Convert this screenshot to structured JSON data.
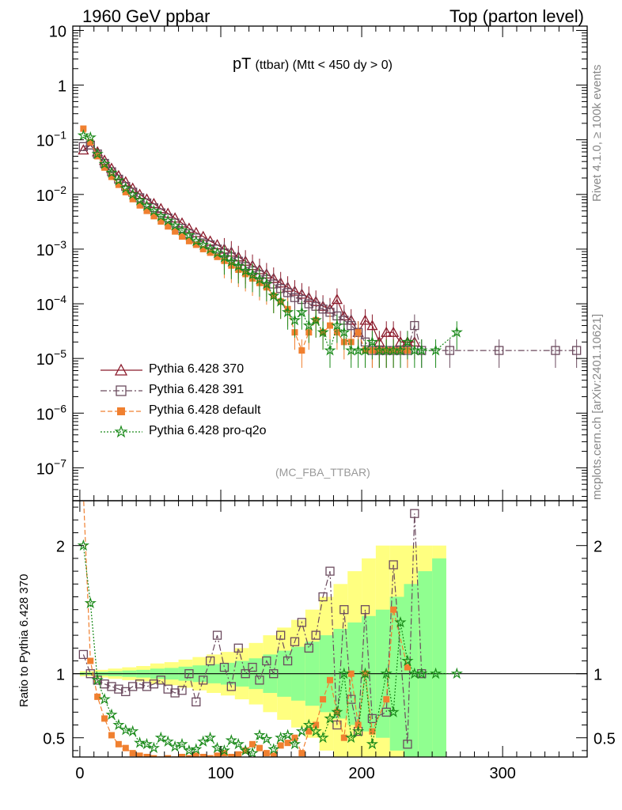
{
  "header": {
    "left": "1960 GeV ppbar",
    "right": "Top (parton level)"
  },
  "side_labels": {
    "rivet": "Rivet 4.1.0, ≥ 100k events",
    "mcplots": "mcplots.cern.ch [arXiv:2401.10621]"
  },
  "plot_title": {
    "main": "pT",
    "sub": "(ttbar) (Mtt < 450 dy > 0)"
  },
  "watermark": "(MC_FBA_TTBAR)",
  "colors": {
    "p370": "#8b1a2b",
    "p391": "#6b4a5e",
    "pdefault": "#f08030",
    "pq2o": "#1a8a1a",
    "band_yellow": "#ffff80",
    "band_green": "#90ff90"
  },
  "chart_data": {
    "type": "line",
    "xlabel": "",
    "xlim": [
      -5,
      360
    ],
    "x_ticks": [
      "0",
      "100",
      "200",
      "300"
    ],
    "main_panel": {
      "yscale": "log",
      "ylim": [
        2.5e-08,
        12
      ],
      "y_ticks": [
        "10^-7",
        "10^-6",
        "10^-5",
        "10^-4",
        "10^-3",
        "10^-2",
        "10^-1",
        "1",
        "10"
      ],
      "ylabel": "",
      "series": [
        {
          "name": "Pythia 6.428 370",
          "marker": "triangle",
          "style": "solid",
          "color": "#8b1a2b",
          "x": [
            2.5,
            7.5,
            12.5,
            17.5,
            22.5,
            27.5,
            32.5,
            37.5,
            42.5,
            47.5,
            52.5,
            57.5,
            62.5,
            67.5,
            72.5,
            77.5,
            82.5,
            87.5,
            92.5,
            97.5,
            102.5,
            107.5,
            112.5,
            117.5,
            122.5,
            127.5,
            132.5,
            137.5,
            142.5,
            147.5,
            152.5,
            157.5,
            162.5,
            167.5,
            172.5,
            177.5,
            182.5,
            187.5,
            192.5,
            197.5,
            202.5,
            207.5,
            212.5,
            217.5,
            222.5,
            227.5,
            232.5,
            237.5
          ],
          "y": [
            0.065,
            0.08,
            0.06,
            0.042,
            0.03,
            0.022,
            0.017,
            0.013,
            0.01,
            0.0082,
            0.0068,
            0.0055,
            0.0045,
            0.0037,
            0.003,
            0.0024,
            0.002,
            0.0017,
            0.0014,
            0.0012,
            0.001,
            0.00088,
            0.00072,
            0.0006,
            0.0005,
            0.00042,
            0.00035,
            0.00029,
            0.00024,
            0.0002,
            0.00017,
            0.00015,
            0.00013,
            0.00011,
            9e-05,
            8e-05,
            0.00012,
            6e-05,
            5e-05,
            3e-05,
            5e-05,
            4e-05,
            2e-05,
            3e-05,
            3e-05,
            2e-05,
            2e-05,
            2e-05
          ]
        },
        {
          "name": "Pythia 6.428 391",
          "marker": "open-square",
          "style": "dashdot",
          "color": "#6b4a5e",
          "x": [
            2.5,
            7.5,
            12.5,
            17.5,
            22.5,
            27.5,
            32.5,
            37.5,
            42.5,
            47.5,
            52.5,
            57.5,
            62.5,
            67.5,
            72.5,
            77.5,
            82.5,
            87.5,
            92.5,
            97.5,
            102.5,
            107.5,
            112.5,
            117.5,
            122.5,
            127.5,
            132.5,
            137.5,
            142.5,
            147.5,
            152.5,
            157.5,
            162.5,
            167.5,
            172.5,
            177.5,
            182.5,
            187.5,
            192.5,
            197.5,
            202.5,
            207.5,
            212.5,
            217.5,
            222.5,
            227.5,
            232.5,
            237.5,
            242.5,
            262.5,
            297.5,
            337.5,
            352.5
          ],
          "y": [
            0.075,
            0.08,
            0.055,
            0.037,
            0.026,
            0.019,
            0.014,
            0.011,
            0.0087,
            0.007,
            0.0057,
            0.0046,
            0.0037,
            0.003,
            0.0024,
            0.0019,
            0.0016,
            0.0013,
            0.0012,
            0.001,
            0.00085,
            0.00072,
            0.0006,
            0.00048,
            0.0004,
            0.00034,
            0.00028,
            0.00023,
            0.00019,
            0.00016,
            0.00013,
            0.00012,
            0.0001,
            9e-05,
            8e-05,
            7e-05,
            6e-05,
            5e-05,
            4e-05,
            3e-05,
            2e-05,
            1.4e-05,
            1.4e-05,
            1.4e-05,
            1.4e-05,
            1.4e-05,
            1.4e-05,
            4e-05,
            1.4e-05,
            1.4e-05,
            1.4e-05,
            1.4e-05,
            1.4e-05
          ]
        },
        {
          "name": "Pythia 6.428 default",
          "marker": "filled-square",
          "style": "dashed",
          "color": "#f08030",
          "x": [
            2.5,
            7.5,
            12.5,
            17.5,
            22.5,
            27.5,
            32.5,
            37.5,
            42.5,
            47.5,
            52.5,
            57.5,
            62.5,
            67.5,
            72.5,
            77.5,
            82.5,
            87.5,
            92.5,
            97.5,
            102.5,
            107.5,
            112.5,
            117.5,
            122.5,
            127.5,
            132.5,
            137.5,
            142.5,
            147.5,
            152.5,
            157.5,
            162.5,
            167.5,
            172.5,
            177.5,
            182.5,
            187.5,
            192.5,
            197.5,
            202.5,
            207.5,
            212.5,
            217.5,
            222.5,
            227.5,
            232.5
          ],
          "y": [
            0.16,
            0.09,
            0.05,
            0.031,
            0.021,
            0.015,
            0.011,
            0.0082,
            0.0063,
            0.005,
            0.004,
            0.0032,
            0.0026,
            0.0021,
            0.0017,
            0.0014,
            0.0012,
            0.001,
            0.00086,
            0.00072,
            0.00061,
            0.0005,
            0.00042,
            0.00035,
            0.00029,
            0.00024,
            0.0002,
            0.00014,
            0.00011,
            8e-05,
            3e-05,
            1.4e-05,
            3e-05,
            5e-05,
            3e-05,
            4e-05,
            3e-05,
            2e-05,
            2e-05,
            3e-05,
            1.4e-05,
            1.4e-05,
            1.4e-05,
            1.4e-05,
            1.4e-05,
            1.4e-05,
            1.4e-05
          ]
        },
        {
          "name": "Pythia 6.428 pro-q2o",
          "marker": "star",
          "style": "dotted",
          "color": "#1a8a1a",
          "x": [
            2.5,
            7.5,
            12.5,
            17.5,
            22.5,
            27.5,
            32.5,
            37.5,
            42.5,
            47.5,
            52.5,
            57.5,
            62.5,
            67.5,
            72.5,
            77.5,
            82.5,
            87.5,
            92.5,
            97.5,
            102.5,
            107.5,
            112.5,
            117.5,
            122.5,
            127.5,
            132.5,
            137.5,
            142.5,
            147.5,
            152.5,
            157.5,
            162.5,
            167.5,
            172.5,
            177.5,
            182.5,
            187.5,
            192.5,
            197.5,
            202.5,
            207.5,
            212.5,
            217.5,
            222.5,
            227.5,
            232.5,
            237.5,
            242.5,
            252.5,
            267.5
          ],
          "y": [
            0.12,
            0.11,
            0.055,
            0.036,
            0.025,
            0.018,
            0.013,
            0.01,
            0.0078,
            0.0062,
            0.005,
            0.004,
            0.0033,
            0.0027,
            0.0022,
            0.0018,
            0.0014,
            0.0012,
            0.001,
            0.00085,
            0.00071,
            0.00059,
            0.00049,
            0.0004,
            0.00034,
            0.00028,
            0.00023,
            0.00014,
            0.00011,
            7e-05,
            5e-05,
            7e-05,
            4e-05,
            5e-05,
            3e-05,
            1.4e-05,
            4e-05,
            3e-05,
            1.4e-05,
            1.4e-05,
            1.4e-05,
            2e-05,
            1.4e-05,
            1.4e-05,
            1.4e-05,
            1.4e-05,
            2e-05,
            1.4e-05,
            1.4e-05,
            1.4e-05,
            3e-05
          ]
        }
      ]
    },
    "ratio_panel": {
      "ylabel": "Ratio to Pythia 6.428 370",
      "ylim": [
        0.35,
        2.35
      ],
      "y_ticks": [
        "0.5",
        "1",
        "2"
      ],
      "bands": {
        "x": [
          0,
          10,
          20,
          30,
          40,
          50,
          60,
          70,
          80,
          90,
          100,
          110,
          120,
          130,
          140,
          150,
          160,
          170,
          180,
          190,
          200,
          210,
          220,
          230,
          240,
          250,
          260
        ],
        "yellow_half": [
          0.02,
          0.03,
          0.04,
          0.05,
          0.06,
          0.08,
          0.09,
          0.11,
          0.13,
          0.15,
          0.17,
          0.2,
          0.24,
          0.3,
          0.36,
          0.42,
          0.5,
          0.6,
          0.7,
          0.8,
          0.9,
          1.0,
          1.0,
          1.0,
          1.0,
          1.0,
          1.0
        ],
        "green_half": [
          0.01,
          0.015,
          0.02,
          0.025,
          0.03,
          0.04,
          0.045,
          0.055,
          0.065,
          0.075,
          0.085,
          0.1,
          0.12,
          0.15,
          0.18,
          0.21,
          0.25,
          0.3,
          0.35,
          0.4,
          0.45,
          0.5,
          0.6,
          0.7,
          0.8,
          0.9,
          1.0
        ]
      },
      "series": [
        {
          "name": "Pythia 6.428 391",
          "color": "#6b4a5e",
          "marker": "open-square",
          "x": [
            2.5,
            7.5,
            12.5,
            17.5,
            22.5,
            27.5,
            32.5,
            37.5,
            42.5,
            47.5,
            52.5,
            57.5,
            62.5,
            67.5,
            72.5,
            77.5,
            82.5,
            87.5,
            92.5,
            97.5,
            102.5,
            107.5,
            112.5,
            117.5,
            122.5,
            127.5,
            132.5,
            137.5,
            142.5,
            147.5,
            152.5,
            157.5,
            162.5,
            167.5,
            172.5,
            177.5,
            182.5,
            187.5,
            192.5,
            197.5,
            202.5,
            207.5,
            217.5,
            222.5,
            232.5,
            237.5,
            242.5
          ],
          "y": [
            1.15,
            1.0,
            0.95,
            0.92,
            0.9,
            0.88,
            0.86,
            0.9,
            0.92,
            0.9,
            0.92,
            0.95,
            0.88,
            0.85,
            0.87,
            1.0,
            0.78,
            0.95,
            1.1,
            1.3,
            1.05,
            0.9,
            1.2,
            1.0,
            1.05,
            0.95,
            1.1,
            1.0,
            1.3,
            1.1,
            1.25,
            1.4,
            1.2,
            1.3,
            1.6,
            1.8,
            0.6,
            1.5,
            0.8,
            0.55,
            1.5,
            0.65,
            0.7,
            1.85,
            0.45,
            2.25,
            1.0
          ]
        },
        {
          "name": "Pythia 6.428 default",
          "color": "#f08030",
          "marker": "filled-square",
          "x": [
            2.5,
            7.5,
            12.5,
            17.5,
            22.5,
            27.5,
            32.5,
            37.5,
            42.5,
            47.5,
            52.5,
            57.5,
            62.5,
            67.5,
            72.5,
            77.5,
            82.5,
            87.5,
            92.5,
            97.5,
            102.5,
            107.5,
            112.5,
            117.5,
            122.5,
            127.5,
            132.5,
            137.5,
            142.5,
            147.5,
            152.5,
            157.5,
            162.5,
            167.5,
            172.5,
            177.5,
            182.5,
            187.5,
            192.5,
            197.5,
            202.5,
            207.5,
            217.5,
            222.5,
            232.5
          ],
          "y": [
            2.4,
            1.1,
            0.82,
            0.65,
            0.52,
            0.45,
            0.42,
            0.38,
            0.36,
            0.35,
            0.34,
            0.33,
            0.34,
            0.33,
            0.35,
            0.34,
            0.36,
            0.35,
            0.34,
            0.36,
            0.38,
            0.35,
            0.37,
            0.4,
            0.45,
            0.42,
            0.38,
            0.36,
            0.44,
            0.46,
            0.5,
            0.38,
            0.55,
            0.6,
            0.8,
            0.95,
            0.7,
            0.5,
            1.0,
            0.6,
            1.0,
            0.55,
            0.8,
            1.5,
            1.05
          ]
        },
        {
          "name": "Pythia 6.428 pro-q2o",
          "color": "#1a8a1a",
          "marker": "star",
          "x": [
            2.5,
            7.5,
            12.5,
            17.5,
            22.5,
            27.5,
            32.5,
            37.5,
            42.5,
            47.5,
            52.5,
            57.5,
            62.5,
            67.5,
            72.5,
            77.5,
            82.5,
            87.5,
            92.5,
            97.5,
            102.5,
            107.5,
            112.5,
            117.5,
            122.5,
            127.5,
            132.5,
            137.5,
            142.5,
            147.5,
            152.5,
            157.5,
            162.5,
            167.5,
            172.5,
            177.5,
            182.5,
            187.5,
            192.5,
            197.5,
            202.5,
            207.5,
            217.5,
            222.5,
            227.5,
            232.5,
            237.5,
            242.5,
            252.5,
            267.5
          ],
          "y": [
            2.0,
            1.55,
            0.95,
            0.8,
            0.68,
            0.6,
            0.56,
            0.55,
            0.46,
            0.45,
            0.42,
            0.5,
            0.47,
            0.43,
            0.45,
            0.4,
            0.41,
            0.47,
            0.5,
            0.42,
            0.4,
            0.48,
            0.45,
            0.4,
            0.38,
            0.52,
            0.49,
            0.41,
            0.5,
            0.52,
            0.45,
            0.55,
            0.6,
            0.55,
            0.5,
            0.65,
            0.7,
            1.0,
            0.5,
            0.55,
            1.0,
            0.45,
            1.0,
            0.7,
            1.4,
            1.1,
            1.0,
            1.0,
            1.0,
            1.0
          ]
        }
      ]
    }
  }
}
